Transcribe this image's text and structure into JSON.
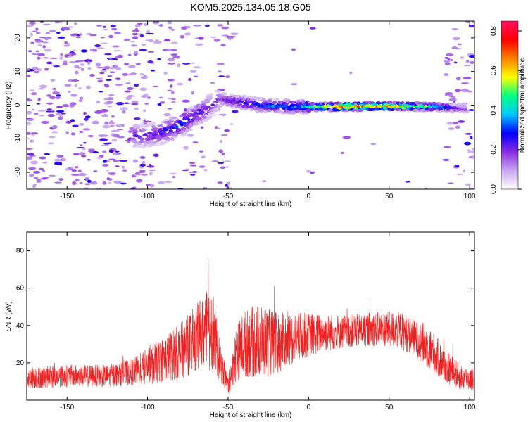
{
  "figure": {
    "title": "KOM5.2025.134.05.18.G05"
  },
  "colors": {
    "snr_line": "#ee2222",
    "background": "#ffffff",
    "axis": "#000000"
  },
  "chart_data": [
    {
      "type": "heatmap",
      "title": "KOM5.2025.134.05.18.G05",
      "xlabel": "Height of straight line (km)",
      "ylabel": "Frequency (Hz)",
      "xlim": [
        -175,
        103
      ],
      "ylim": [
        -25,
        25
      ],
      "xticks": [
        -150,
        -100,
        -50,
        0,
        50,
        100
      ],
      "yticks": [
        -20,
        -10,
        0,
        10,
        20
      ],
      "colorbar": {
        "label": "Normalized spectral amplitude",
        "range": [
          0,
          0.85
        ],
        "ticks": [
          0.0,
          0.2,
          0.4,
          0.6,
          0.8
        ],
        "colormap": [
          "#ffffff",
          "#c8a6f0",
          "#8a2be2",
          "#0000ff",
          "#00c8ff",
          "#00ff80",
          "#ffff00",
          "#ff8000",
          "#ff0000",
          "#ff1060"
        ]
      },
      "ridge": {
        "description_points_x": [
          -100,
          -90,
          -80,
          -70,
          -60,
          -55,
          -45,
          -30,
          -10,
          0,
          20,
          50,
          80,
          98
        ],
        "description_points_y": [
          -9,
          -8,
          -6,
          -3,
          0,
          2,
          1,
          0,
          -0.5,
          -0.5,
          -0.5,
          -0.3,
          -0.5,
          -1
        ],
        "amplitude": [
          0.25,
          0.3,
          0.35,
          0.3,
          0.25,
          0.2,
          0.3,
          0.35,
          0.4,
          0.5,
          0.85,
          0.8,
          0.5,
          0.2
        ]
      }
    },
    {
      "type": "line",
      "xlabel": "Height of straight line (km)",
      "ylabel": "SNR (v/v)",
      "xlim": [
        -175,
        103
      ],
      "ylim": [
        0,
        90
      ],
      "xticks": [
        -150,
        -100,
        -50,
        0,
        50,
        100
      ],
      "yticks": [
        20,
        40,
        60,
        80
      ],
      "envelope": {
        "x": [
          -175,
          -150,
          -125,
          -110,
          -100,
          -90,
          -80,
          -70,
          -65,
          -60,
          -55,
          -50,
          -45,
          -40,
          -30,
          -20,
          -10,
          0,
          10,
          25,
          40,
          55,
          65,
          75,
          85,
          95,
          103
        ],
        "mean": [
          12,
          13,
          13,
          15,
          18,
          22,
          26,
          33,
          36,
          40,
          20,
          8,
          25,
          30,
          32,
          30,
          33,
          35,
          36,
          37,
          38,
          38,
          34,
          28,
          18,
          12,
          11
        ],
        "spread": [
          6,
          6,
          6,
          7,
          10,
          12,
          15,
          18,
          20,
          25,
          10,
          5,
          15,
          18,
          20,
          17,
          14,
          12,
          10,
          9,
          9,
          10,
          10,
          12,
          9,
          7,
          6
        ]
      }
    }
  ]
}
